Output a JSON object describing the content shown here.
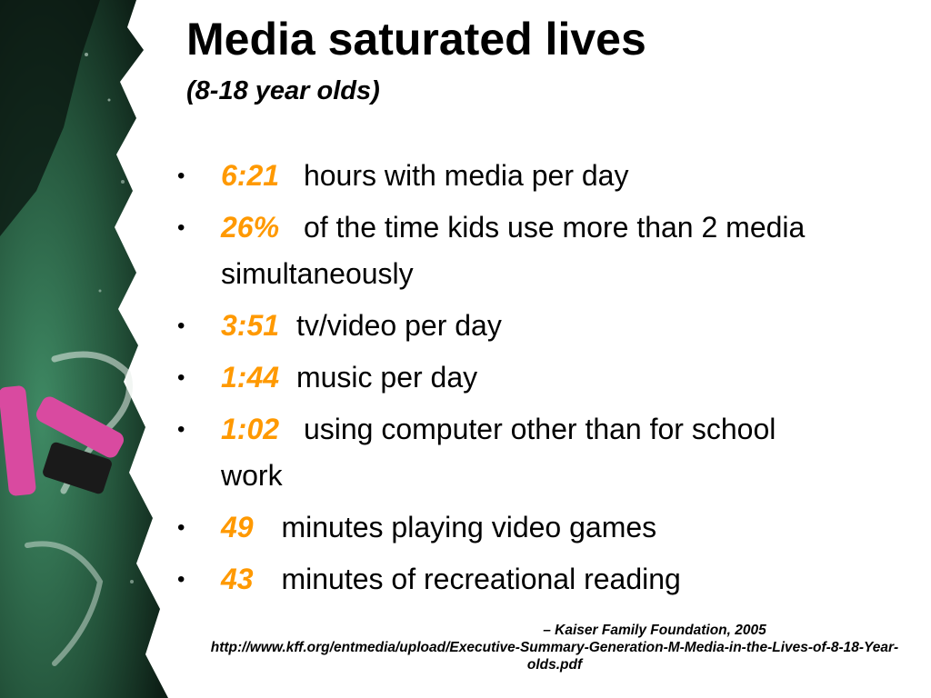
{
  "slide": {
    "title": "Media saturated lives",
    "subtitle": "(8-18 year olds)"
  },
  "bullets": [
    {
      "stat": "6:21",
      "text": "hours with media per day"
    },
    {
      "stat": "26%",
      "text": "of the time kids use more than 2 media simultaneously"
    },
    {
      "stat": "3:51",
      "text": "tv/video per day"
    },
    {
      "stat": "1:44",
      "text": "music per day"
    },
    {
      "stat": "1:02",
      "text": "using computer other than for school work"
    },
    {
      "stat": "49",
      "text": "minutes playing video games"
    },
    {
      "stat": "43",
      "text": "minutes of recreational reading"
    }
  ],
  "bullet_marker": "•",
  "citation": {
    "source": "– Kaiser Family Foundation, 2005",
    "url": "http://www.kff.org/entmedia/upload/Executive-Summary-Generation-M-Media-in-the-Lives-of-8-18-Year-olds.pdf"
  },
  "colors": {
    "stat_accent": "#ff9900",
    "chalkboard_green": "#2f6b4c",
    "chalk_pink": "#d94aa0"
  }
}
